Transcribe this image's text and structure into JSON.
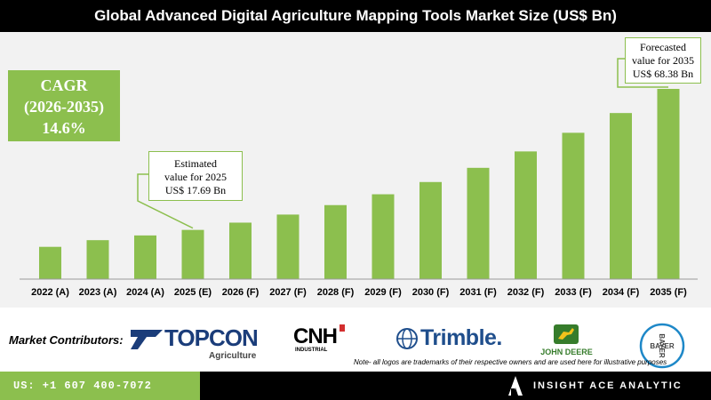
{
  "title": "Global Advanced Digital Agriculture Mapping Tools Market Size (US$ Bn)",
  "cagr": {
    "label": "CAGR",
    "period": "(2026-2035)",
    "value": "14.6%"
  },
  "callouts": {
    "estimated": {
      "line1": "Estimated",
      "line2": "value for 2025",
      "line3": "US$ 17.69 Bn"
    },
    "forecasted": {
      "line1": "Forecasted",
      "line2": "value for 2035",
      "line3": "US$ 68.38 Bn"
    }
  },
  "chart_data": {
    "type": "bar",
    "title": "Global Advanced Digital Agriculture Mapping Tools Market Size (US$ Bn)",
    "categories": [
      "2022 (A)",
      "2023 (A)",
      "2024 (A)",
      "2025 (E)",
      "2026 (F)",
      "2027 (F)",
      "2028 (F)",
      "2029 (F)",
      "2030 (F)",
      "2031 (F)",
      "2032 (F)",
      "2033 (F)",
      "2034 (F)",
      "2035 (F)"
    ],
    "values": [
      11.6,
      14.0,
      15.7,
      17.69,
      20.3,
      23.2,
      26.6,
      30.5,
      34.9,
      40.0,
      45.9,
      52.6,
      59.7,
      68.38
    ],
    "ylim": [
      0,
      68.38
    ],
    "bar_color": "#8cbf4e"
  },
  "contributors": {
    "label": "Market Contributors:",
    "logos": {
      "topcon": {
        "name": "TOPCON",
        "sub": "Agriculture"
      },
      "cnh": {
        "name": "CNH",
        "sub": "INDUSTRIAL"
      },
      "trimble": {
        "name": "Trimble."
      },
      "deere": {
        "name": "JOHN DEERE"
      },
      "bayer": {
        "name": "BAYER"
      }
    },
    "note": "Note- all logos are trademarks of their respective owners and are used here for illustrative purposes"
  },
  "footer": {
    "phone": "US: +1 607 400-7072",
    "brand": "INSIGHT ACE ANALYTIC"
  },
  "colors": {
    "accent": "#8cbf4e",
    "dark": "#000000"
  }
}
